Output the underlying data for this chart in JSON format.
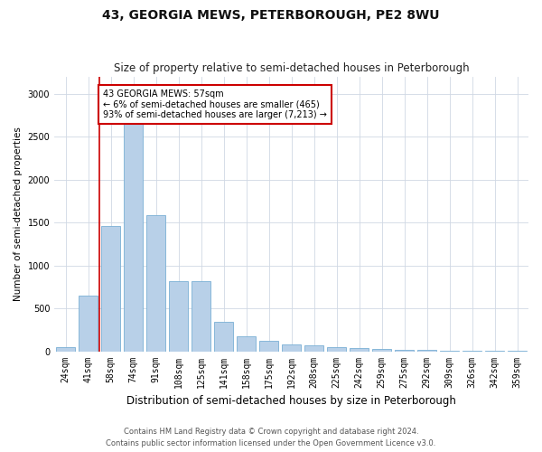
{
  "title1": "43, GEORGIA MEWS, PETERBOROUGH, PE2 8WU",
  "title2": "Size of property relative to semi-detached houses in Peterborough",
  "xlabel": "Distribution of semi-detached houses by size in Peterborough",
  "ylabel": "Number of semi-detached properties",
  "categories": [
    "24sqm",
    "41sqm",
    "58sqm",
    "74sqm",
    "91sqm",
    "108sqm",
    "125sqm",
    "141sqm",
    "158sqm",
    "175sqm",
    "192sqm",
    "208sqm",
    "225sqm",
    "242sqm",
    "259sqm",
    "275sqm",
    "292sqm",
    "309sqm",
    "326sqm",
    "342sqm",
    "359sqm"
  ],
  "values": [
    50,
    650,
    1460,
    3000,
    1580,
    820,
    820,
    340,
    175,
    120,
    75,
    65,
    50,
    35,
    25,
    15,
    12,
    8,
    5,
    4,
    3
  ],
  "bar_color": "#b8d0e8",
  "bar_edge_color": "#7aafd4",
  "red_line_x": 1.5,
  "annotation_title": "43 GEORGIA MEWS: 57sqm",
  "annotation_line1": "← 6% of semi-detached houses are smaller (465)",
  "annotation_line2": "93% of semi-detached houses are larger (7,213) →",
  "annotation_box_color": "#ffffff",
  "annotation_border_color": "#cc0000",
  "ylim": [
    0,
    3200
  ],
  "yticks": [
    0,
    500,
    1000,
    1500,
    2000,
    2500,
    3000
  ],
  "footer1": "Contains HM Land Registry data © Crown copyright and database right 2024.",
  "footer2": "Contains public sector information licensed under the Open Government Licence v3.0.",
  "bg_color": "#ffffff",
  "grid_color": "#d0d8e4",
  "title1_fontsize": 10,
  "title2_fontsize": 8.5,
  "ylabel_fontsize": 7.5,
  "xlabel_fontsize": 8.5,
  "tick_fontsize": 7,
  "footer_fontsize": 6,
  "annotation_fontsize": 7
}
